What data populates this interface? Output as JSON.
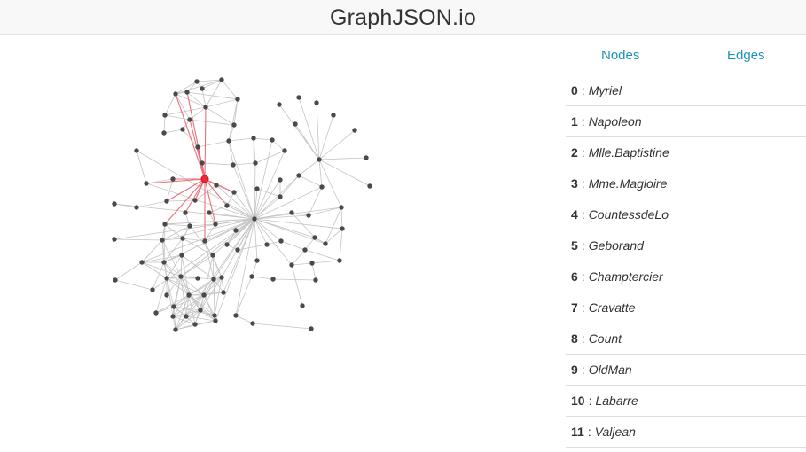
{
  "app": {
    "title": "GraphJSON.io"
  },
  "tabs": {
    "nodes_label": "Nodes",
    "edges_label": "Edges"
  },
  "node_list": [
    {
      "index": "0",
      "sep": ":",
      "name": "Myriel"
    },
    {
      "index": "1",
      "sep": ":",
      "name": "Napoleon"
    },
    {
      "index": "2",
      "sep": ":",
      "name": "Mlle.Baptistine"
    },
    {
      "index": "3",
      "sep": ":",
      "name": "Mme.Magloire"
    },
    {
      "index": "4",
      "sep": ":",
      "name": "CountessdeLo"
    },
    {
      "index": "5",
      "sep": ":",
      "name": "Geborand"
    },
    {
      "index": "6",
      "sep": ":",
      "name": "Champtercier"
    },
    {
      "index": "7",
      "sep": ":",
      "name": "Cravatte"
    },
    {
      "index": "8",
      "sep": ":",
      "name": "Count"
    },
    {
      "index": "9",
      "sep": ":",
      "name": "OldMan"
    },
    {
      "index": "10",
      "sep": ":",
      "name": "Labarre"
    },
    {
      "index": "11",
      "sep": ":",
      "name": "Valjean"
    }
  ],
  "colors": {
    "link": "#1a93b8",
    "node": "#4a4a4a",
    "edge": "#c4c4c4",
    "highlight_node": "#ef2a33",
    "highlight_edge": "#ea6f79",
    "navbar_bg": "#f8f8f8"
  }
}
